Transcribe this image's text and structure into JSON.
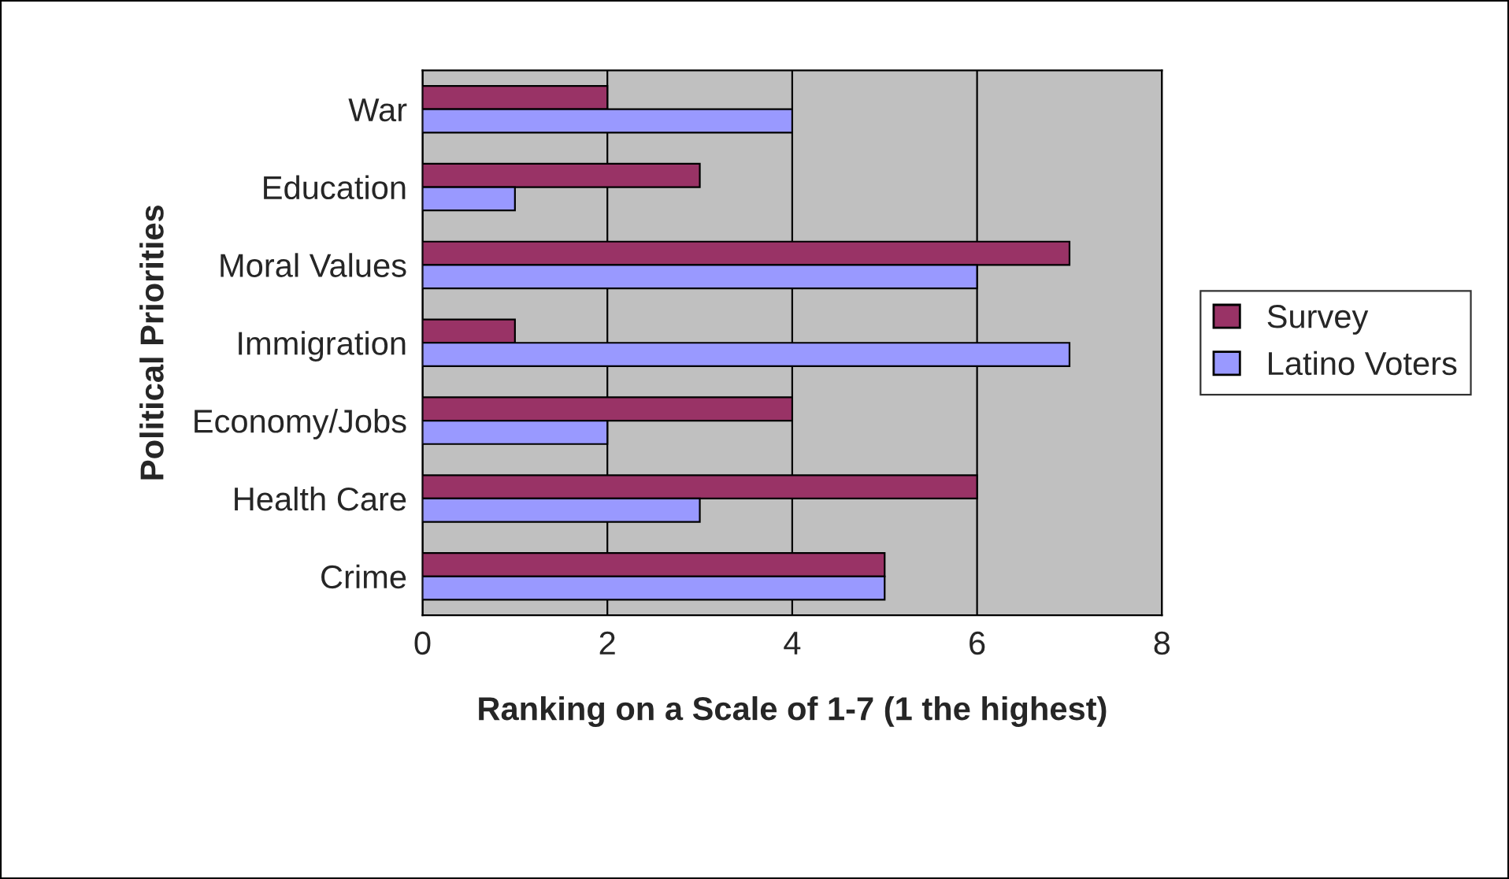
{
  "chart_data": {
    "type": "bar",
    "orientation": "horizontal",
    "ylabel": "Political Priorities",
    "xlabel": "Ranking on a Scale of 1-7 (1 the highest)",
    "categories": [
      "War",
      "Education",
      "Moral Values",
      "Immigration",
      "Economy/Jobs",
      "Health Care",
      "Crime"
    ],
    "series": [
      {
        "name": "Survey",
        "color": "#993366",
        "values": [
          2,
          3,
          7,
          1,
          4,
          6,
          5
        ]
      },
      {
        "name": "Latino Voters",
        "color": "#9999ff",
        "values": [
          4,
          1,
          6,
          7,
          2,
          3,
          5
        ]
      }
    ],
    "xlim": [
      0,
      8
    ],
    "xticks": [
      0,
      2,
      4,
      6,
      8
    ],
    "grid": "x",
    "legend": "right"
  }
}
